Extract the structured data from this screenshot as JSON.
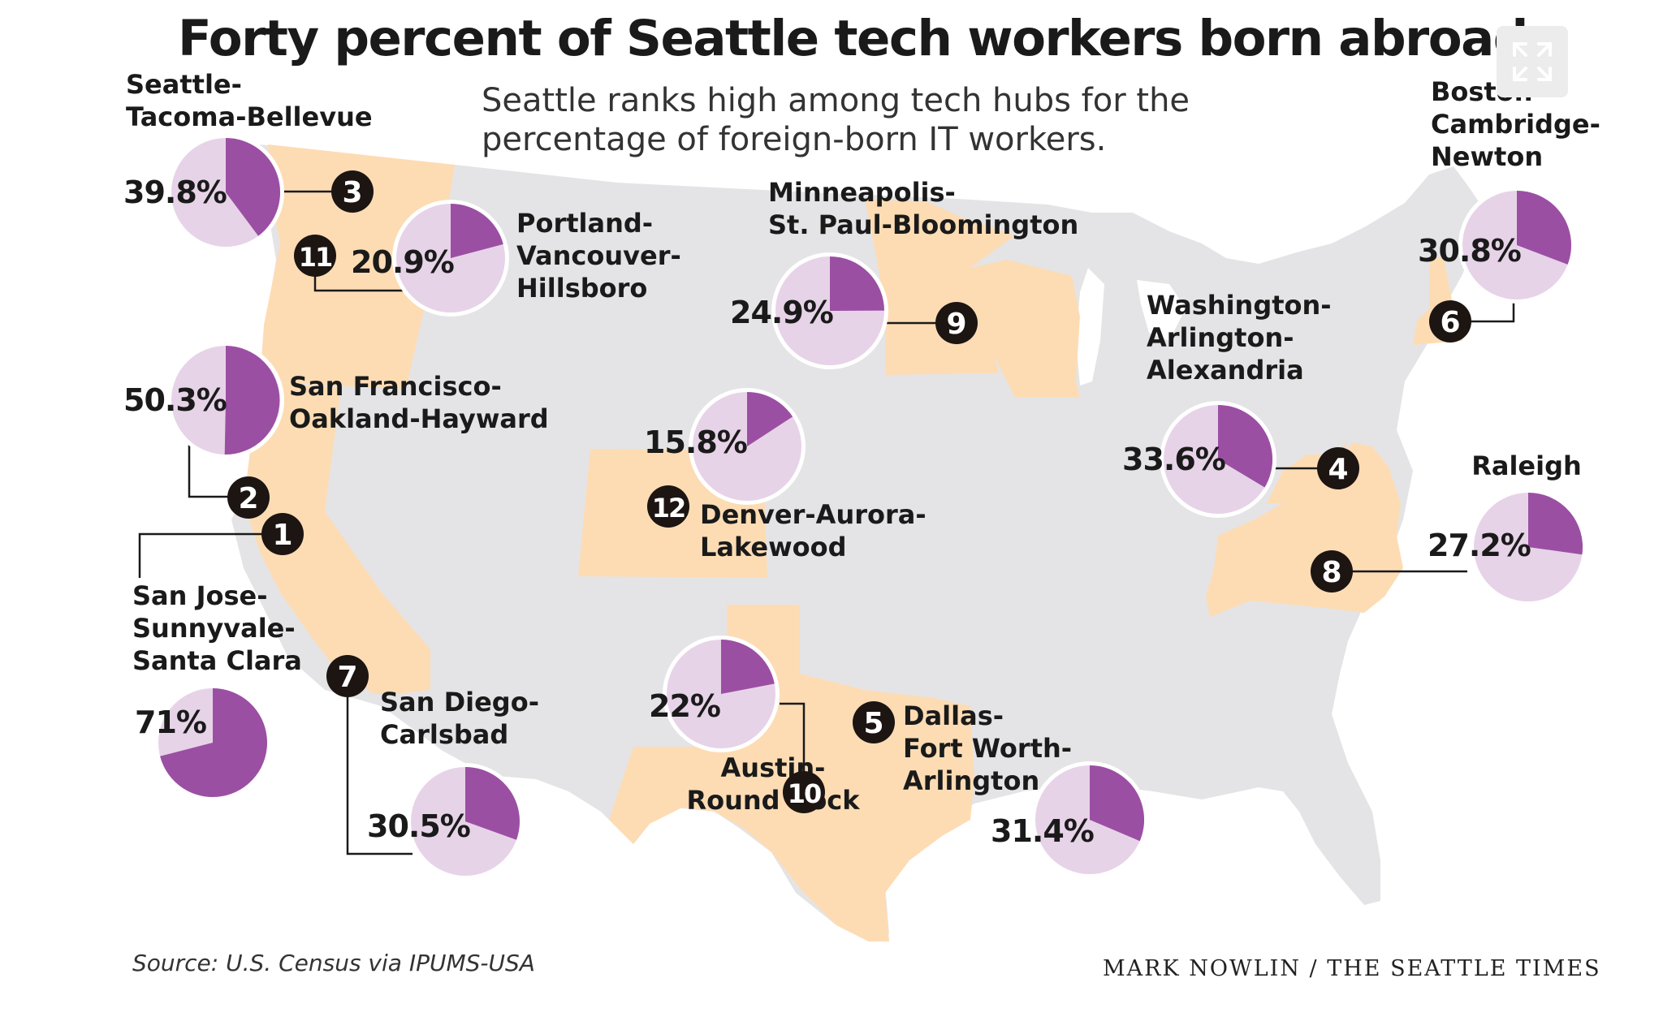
{
  "title": "Forty percent of Seattle tech workers born abroad",
  "subtitle_line1": "Seattle ranks high among tech hubs for the",
  "subtitle_line2": "percentage of foreign-born IT workers.",
  "source": "Source: U.S. Census via IPUMS-USA",
  "credit": "MARK NOWLIN / THE SEATTLE TIMES",
  "expand_button": {
    "icon": "expand-icon"
  },
  "colors": {
    "foreign_born": "#9b4fa3",
    "native_born": "#e7d3e8",
    "highlight_state": "#fddcb4",
    "map_base": "#e4e4e6",
    "rank_badge": "#1c1512"
  },
  "chart_data": {
    "type": "pie",
    "metros": [
      {
        "rank": 1,
        "name_lines": [
          "San Jose-",
          "Sunnyvale-",
          "Santa Clara"
        ],
        "percent": 71,
        "percent_label": "71%"
      },
      {
        "rank": 2,
        "name_lines": [
          "San Francisco-",
          "Oakland-Hayward"
        ],
        "percent": 50.3,
        "percent_label": "50.3%"
      },
      {
        "rank": 3,
        "name_lines": [
          "Seattle-",
          "Tacoma-Bellevue"
        ],
        "percent": 39.8,
        "percent_label": "39.8%"
      },
      {
        "rank": 4,
        "name_lines": [
          "Washington-",
          "Arlington-",
          "Alexandria"
        ],
        "percent": 33.6,
        "percent_label": "33.6%"
      },
      {
        "rank": 5,
        "name_lines": [
          "Dallas-",
          "Fort Worth-",
          "Arlington"
        ],
        "percent": 31.4,
        "percent_label": "31.4%"
      },
      {
        "rank": 6,
        "name_lines": [
          "Boston-",
          "Cambridge-",
          "Newton"
        ],
        "percent": 30.8,
        "percent_label": "30.8%"
      },
      {
        "rank": 7,
        "name_lines": [
          "San Diego-",
          "Carlsbad"
        ],
        "percent": 30.5,
        "percent_label": "30.5%"
      },
      {
        "rank": 8,
        "name_lines": [
          "Raleigh"
        ],
        "percent": 27.2,
        "percent_label": "27.2%"
      },
      {
        "rank": 9,
        "name_lines": [
          "Minneapolis-",
          "St. Paul-Bloomington"
        ],
        "percent": 24.9,
        "percent_label": "24.9%"
      },
      {
        "rank": 10,
        "name_lines": [
          "Austin-",
          "Round Rock"
        ],
        "percent": 22,
        "percent_label": "22%"
      },
      {
        "rank": 11,
        "name_lines": [
          "Portland-",
          "Vancouver-",
          "Hillsboro"
        ],
        "percent": 20.9,
        "percent_label": "20.9%"
      },
      {
        "rank": 12,
        "name_lines": [
          "Denver-Aurora-",
          "Lakewood"
        ],
        "percent": 15.8,
        "percent_label": "15.8%"
      }
    ]
  }
}
